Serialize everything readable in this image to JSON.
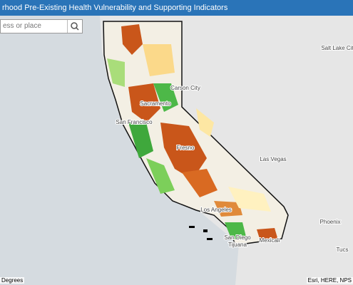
{
  "header": {
    "title": "rhood Pre-Existing Health Vulnerability and Supporting Indicators"
  },
  "search": {
    "placeholder": "ess or place"
  },
  "labels": [
    "Salt Lake City",
    "Carson City",
    "Sacramento",
    "San Francisco",
    "Fresno",
    "Las Vegas",
    "Los Angeles",
    "Phoenix",
    "San Diego",
    "Tijuana",
    "Mexicali",
    "Tucs"
  ],
  "scale": "Degrees",
  "attribution": "Esri, HERE, NPS"
}
